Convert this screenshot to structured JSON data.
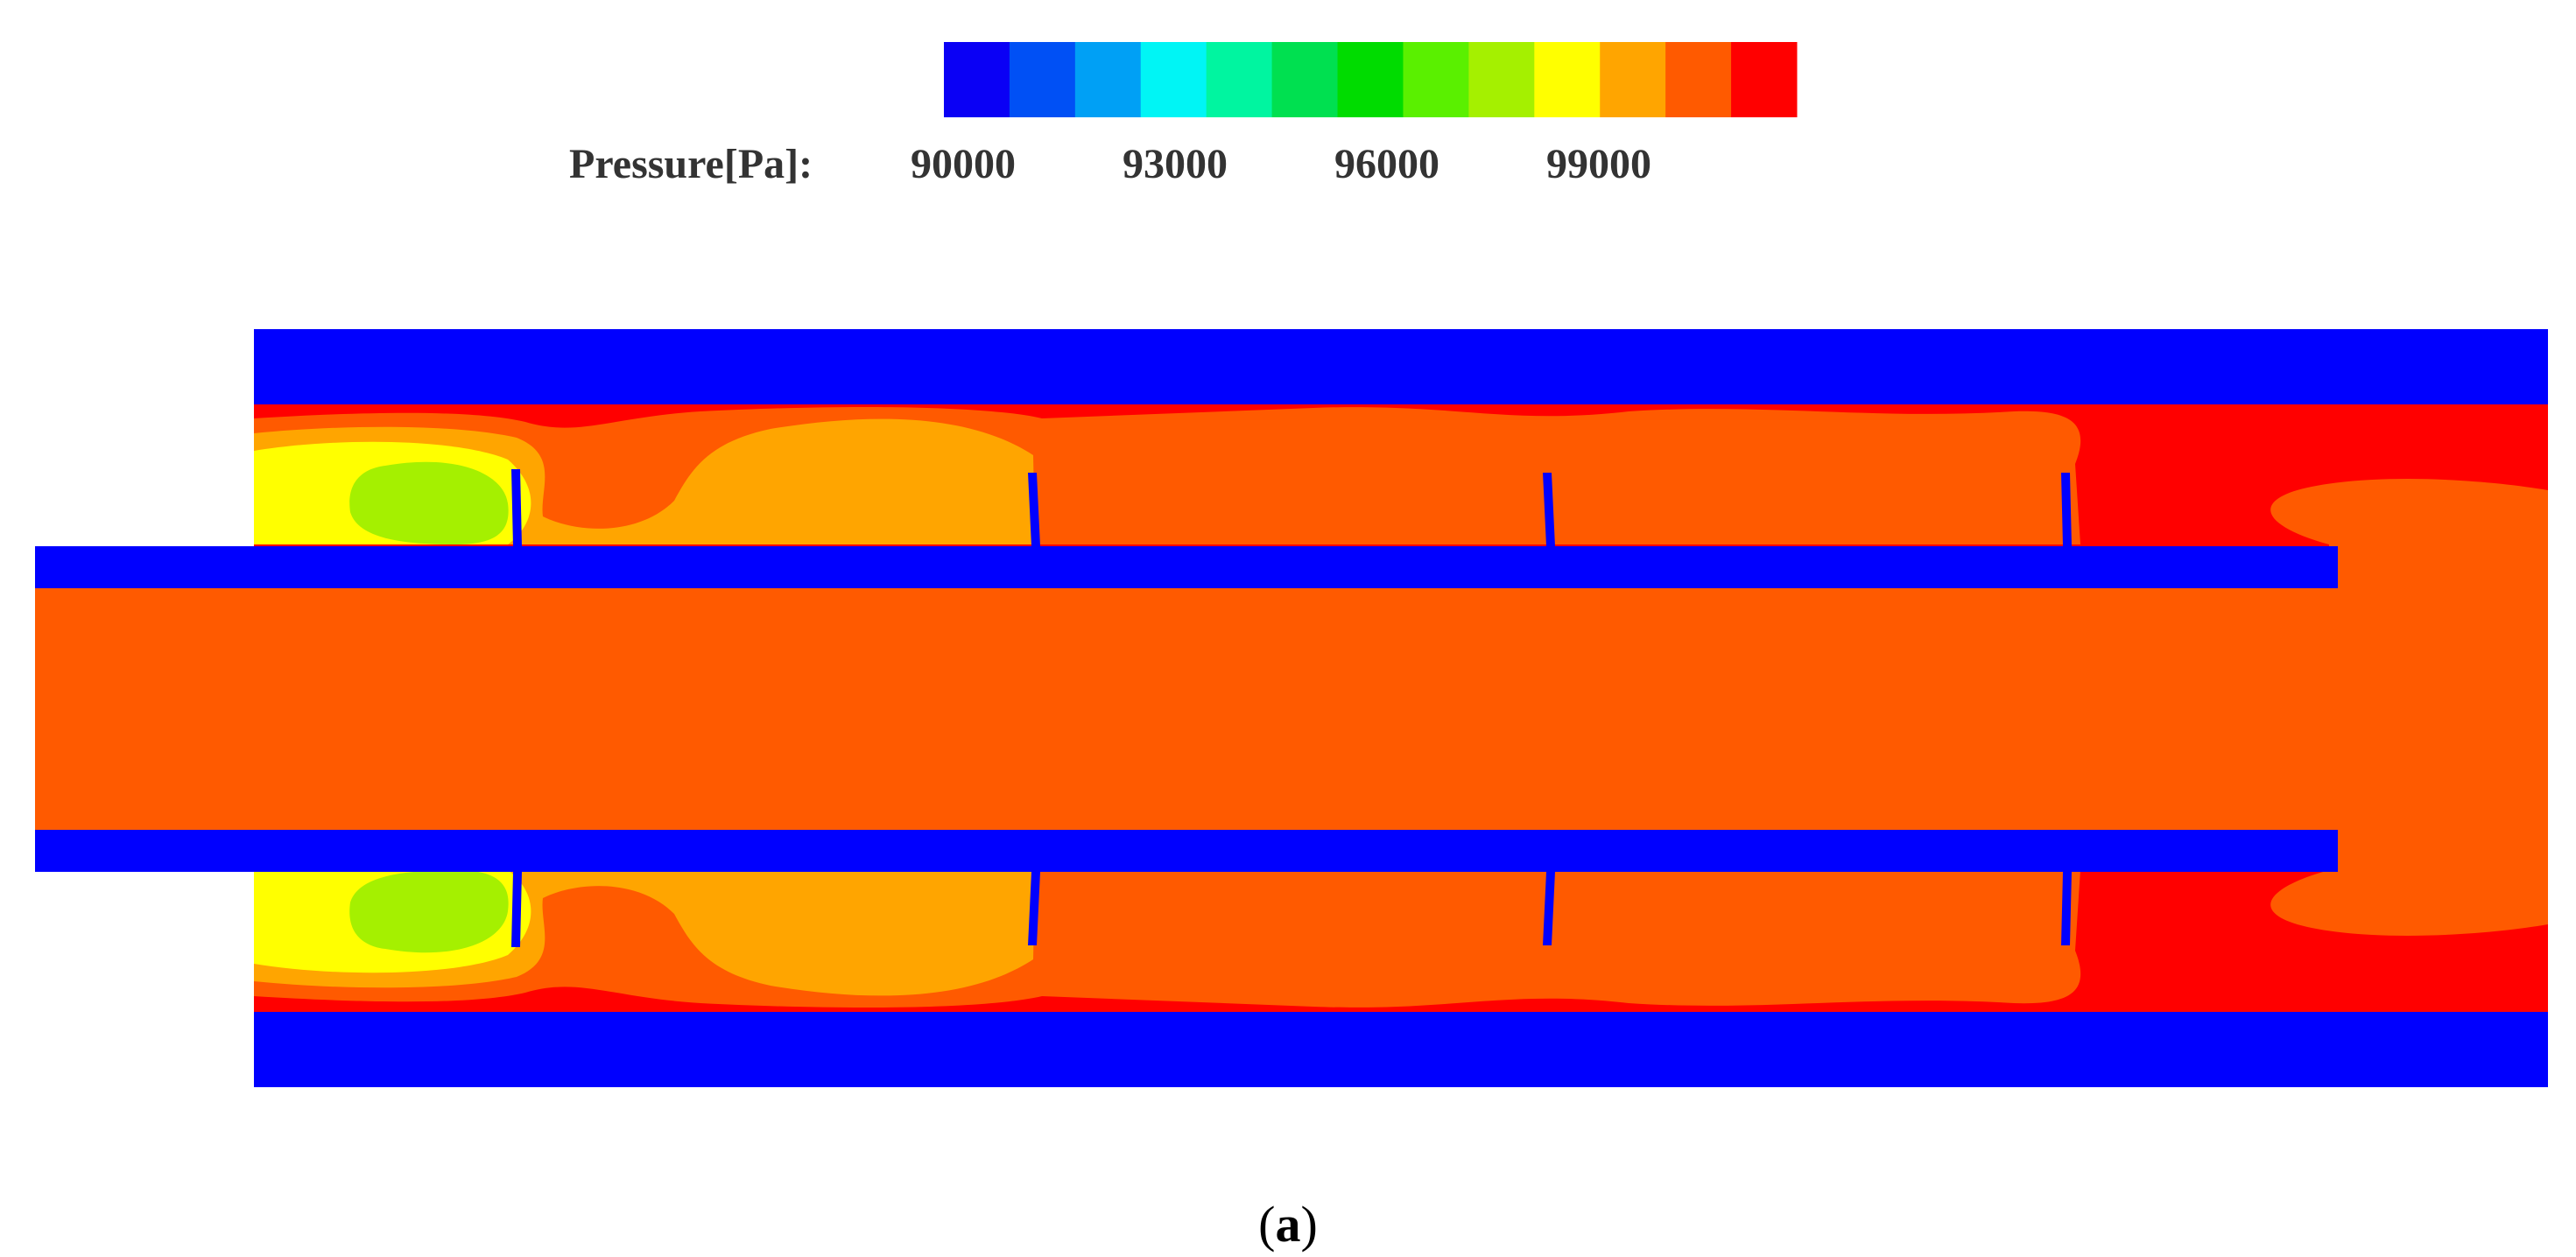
{
  "legend": {
    "title": "Pressure[Pa]:",
    "tick_labels": [
      "90000",
      "93000",
      "96000",
      "99000"
    ],
    "colors": [
      "#0a00f5",
      "#0050f5",
      "#00a0f5",
      "#00f5f5",
      "#00f5a0",
      "#00e050",
      "#00dc00",
      "#5af000",
      "#a5f000",
      "#ffff00",
      "#ffa500",
      "#ff5a00",
      "#ff0000"
    ]
  },
  "palette": {
    "wall": "#0000ff",
    "level_high": "#ff0000",
    "level_mid_high": "#ff5a00",
    "level_mid": "#ffa500",
    "level_mid_low": "#ffff00",
    "level_low": "#a5f000"
  },
  "caption": {
    "label": "a"
  }
}
